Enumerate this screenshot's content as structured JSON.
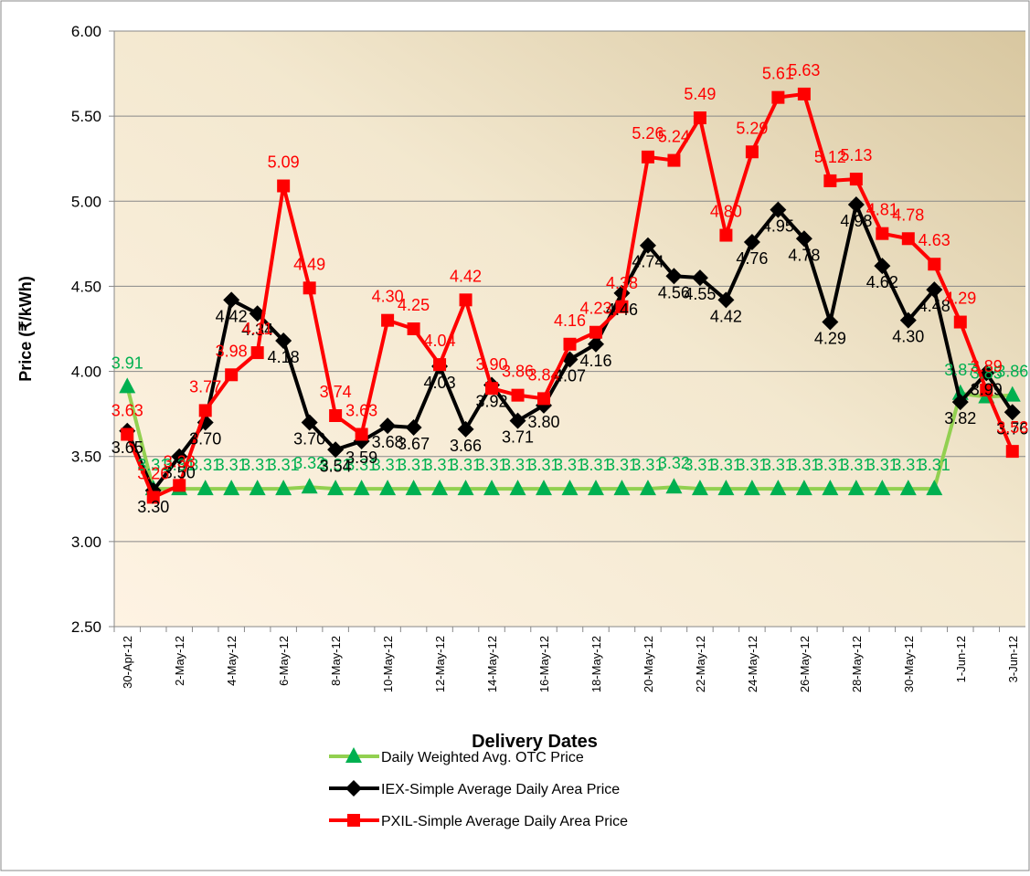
{
  "chart_data": {
    "type": "line",
    "x_label": "Delivery Dates",
    "y_label": "Price (₹/kWh)",
    "categories": [
      "30-Apr-12",
      null,
      "2-May-12",
      null,
      "4-May-12",
      null,
      "6-May-12",
      null,
      "8-May-12",
      null,
      "10-May-12",
      null,
      "12-May-12",
      null,
      "14-May-12",
      null,
      "16-May-12",
      null,
      "18-May-12",
      null,
      "20-May-12",
      null,
      "22-May-12",
      null,
      "24-May-12",
      null,
      "26-May-12",
      null,
      "28-May-12",
      null,
      "30-May-12",
      null,
      "1-Jun-12",
      null,
      "3-Jun-12"
    ],
    "ylim": [
      2.5,
      6.0
    ],
    "yticks": [
      {
        "value": 2.5,
        "label": "2.50"
      },
      {
        "value": 3.0,
        "label": "3.00"
      },
      {
        "value": 3.5,
        "label": "3.50"
      },
      {
        "value": 4.0,
        "label": "4.00"
      },
      {
        "value": 4.5,
        "label": "4.50"
      },
      {
        "value": 5.0,
        "label": "5.00"
      },
      {
        "value": 5.5,
        "label": "5.50"
      },
      {
        "value": 6.0,
        "label": "6.00"
      }
    ],
    "grid": true,
    "legend": "bottom",
    "series": [
      {
        "name": "Daily Weighted Avg. OTC Price",
        "color": "#92d050",
        "marker": "triangle",
        "marker_color": "#00b050",
        "label_color": "#00b050",
        "values": [
          3.91,
          3.31,
          3.31,
          3.31,
          3.31,
          3.31,
          3.31,
          3.32,
          3.31,
          3.31,
          3.31,
          3.31,
          3.31,
          3.31,
          3.31,
          3.31,
          3.31,
          3.31,
          3.31,
          3.31,
          3.31,
          3.32,
          3.31,
          3.31,
          3.31,
          3.31,
          3.31,
          3.31,
          3.31,
          3.31,
          3.31,
          3.31,
          3.87,
          3.85,
          3.86
        ],
        "value_labels": [
          "3.91",
          "3.31",
          "3.31",
          "3.31",
          "3.31",
          "3.31",
          "3.31",
          "3.32",
          "3.31",
          "3.31",
          "3.31",
          "3.31",
          "3.31",
          "3.31",
          "3.31",
          "3.31",
          "3.31",
          "3.31",
          "3.31",
          "3.31",
          "3.31",
          "3.32",
          "3.31",
          "3.31",
          "3.31",
          "3.31",
          "3.31",
          "3.31",
          "3.31",
          "3.31",
          "3.31",
          "3.31",
          "3.87",
          "3.85",
          "3.86"
        ]
      },
      {
        "name": "IEX-Simple Average Daily Area Price",
        "color": "#000000",
        "marker": "diamond",
        "marker_color": "#000000",
        "label_color": "#000000",
        "values": [
          3.65,
          3.3,
          3.5,
          3.7,
          4.42,
          4.34,
          4.18,
          3.7,
          3.54,
          3.59,
          3.68,
          3.67,
          4.03,
          3.66,
          3.92,
          3.71,
          3.8,
          4.07,
          4.16,
          4.46,
          4.74,
          4.56,
          4.55,
          4.42,
          4.76,
          4.95,
          4.78,
          4.29,
          4.98,
          4.62,
          4.3,
          4.48,
          3.82,
          3.99,
          3.76
        ],
        "value_labels": [
          "3.65",
          "3.30",
          "3.50",
          "3.70",
          "4.42",
          "4.34",
          "4.18",
          "3.70",
          "3.54",
          "3.59",
          "3.68",
          "3.67",
          "4.03",
          "3.66",
          "3.92",
          "3.71",
          "3.80",
          "4.07",
          "4.16",
          "4.46",
          "4.74",
          "4.56",
          "4.55",
          "4.42",
          "4.76",
          "4.95",
          "4.78",
          "4.29",
          "4.98",
          "4.62",
          "4.30",
          "4.48",
          "3.82",
          "3.99",
          "3.76"
        ]
      },
      {
        "name": "PXIL-Simple Average Daily Area Price",
        "color": "#ff0000",
        "marker": "square",
        "marker_color": "#ff0000",
        "label_color": "#ff0000",
        "values": [
          3.63,
          3.26,
          3.33,
          3.77,
          3.98,
          4.11,
          5.09,
          4.49,
          3.74,
          3.63,
          4.3,
          4.25,
          4.04,
          4.42,
          3.9,
          3.86,
          3.84,
          4.16,
          4.23,
          4.38,
          5.26,
          5.24,
          5.49,
          4.8,
          5.29,
          5.61,
          5.63,
          5.12,
          5.13,
          4.81,
          4.78,
          4.63,
          4.29,
          3.89,
          3.53
        ],
        "value_labels": [
          "3.63",
          "3.26",
          "3.33",
          "3.77",
          "3.98",
          "4.11",
          "5.09",
          "4.49",
          "3.74",
          "3.63",
          "4.30",
          "4.25",
          "4.04",
          "4.42",
          "3.90",
          "3.86",
          "3.84",
          "4.16",
          "4.23",
          "4.38",
          "5.26",
          "5.24",
          "5.49",
          "4.80",
          "5.29",
          "5.61",
          "5.63",
          "5.12",
          "5.13",
          "4.81",
          "4.78",
          "4.63",
          "4.29",
          "3.89",
          "3.53"
        ]
      }
    ]
  }
}
